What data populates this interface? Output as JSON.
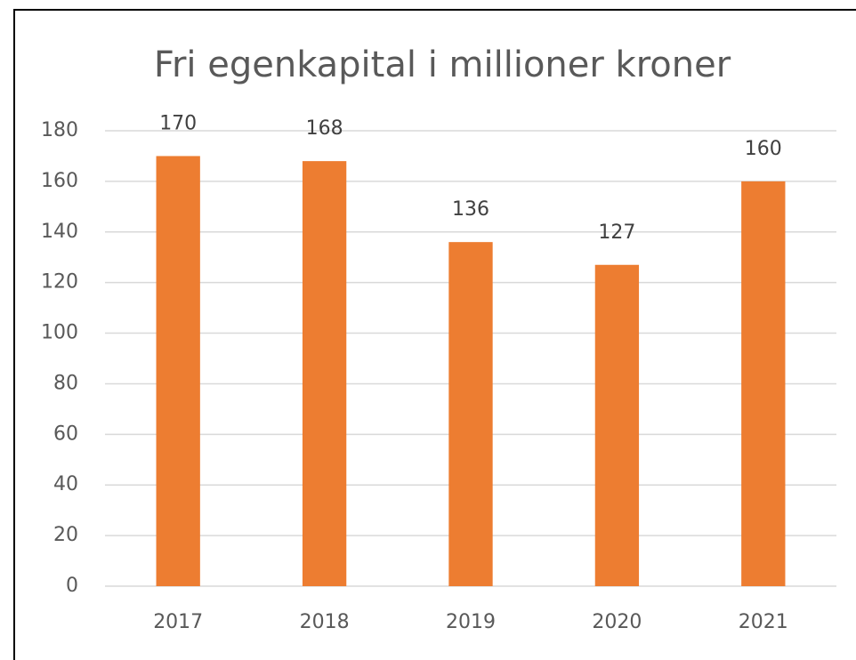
{
  "chart_data": {
    "type": "bar",
    "title": "Fri egenkapital i millioner kroner",
    "categories": [
      "2017",
      "2018",
      "2019",
      "2020",
      "2021"
    ],
    "values": [
      170,
      168,
      136,
      127,
      160
    ],
    "color": "#ed7d31",
    "ylim": [
      0,
      180
    ],
    "yticks": [
      0,
      20,
      40,
      60,
      80,
      100,
      120,
      140,
      160,
      180
    ],
    "grid": true
  }
}
